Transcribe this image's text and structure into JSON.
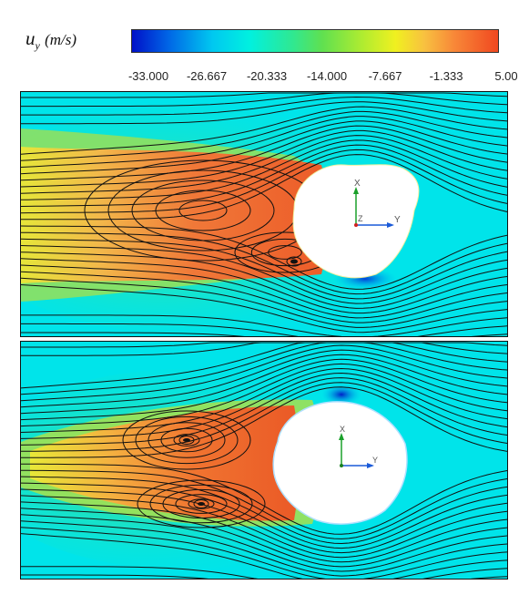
{
  "colorbar": {
    "label_main": "u",
    "label_sub": "y",
    "label_unit": "(m/s)",
    "ticks": [
      "-33.000",
      "-26.667",
      "-20.333",
      "-14.000",
      "-7.667",
      "-1.333",
      "5.00"
    ]
  },
  "panels": [
    {
      "axis_x": "X",
      "axis_y": "Y",
      "axis_z": "Z"
    },
    {
      "axis_x": "X",
      "axis_y": "Y"
    }
  ]
}
